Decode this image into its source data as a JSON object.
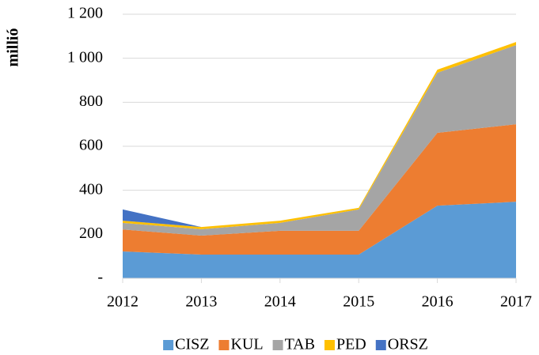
{
  "chart_data": {
    "type": "stacked_area",
    "y_label": "millió",
    "categories": [
      "2012",
      "2013",
      "2014",
      "2015",
      "2016",
      "2017"
    ],
    "series": [
      {
        "name": "CISZ",
        "color": "#5b9bd5",
        "values": [
          122,
          108,
          108,
          108,
          330,
          348
        ]
      },
      {
        "name": "KUL",
        "color": "#ed7d31",
        "values": [
          100,
          86,
          108,
          108,
          331,
          352
        ]
      },
      {
        "name": "TAB",
        "color": "#a5a5a5",
        "values": [
          30,
          29,
          36,
          97,
          273,
          360
        ]
      },
      {
        "name": "PED",
        "color": "#ffc000",
        "values": [
          10,
          10,
          10,
          7,
          14,
          14
        ]
      },
      {
        "name": "ORSZ",
        "color": "#4472c4",
        "values": [
          51,
          0,
          0,
          0,
          0,
          0
        ]
      }
    ],
    "ylim": [
      0,
      1200
    ],
    "yticks": [
      {
        "value": 0,
        "label": "-"
      },
      200,
      400,
      600,
      800,
      {
        "value": 1000,
        "label": "1 000"
      },
      {
        "value": 1200,
        "label": "1 200"
      }
    ],
    "grid": true,
    "legend": "bottom"
  }
}
